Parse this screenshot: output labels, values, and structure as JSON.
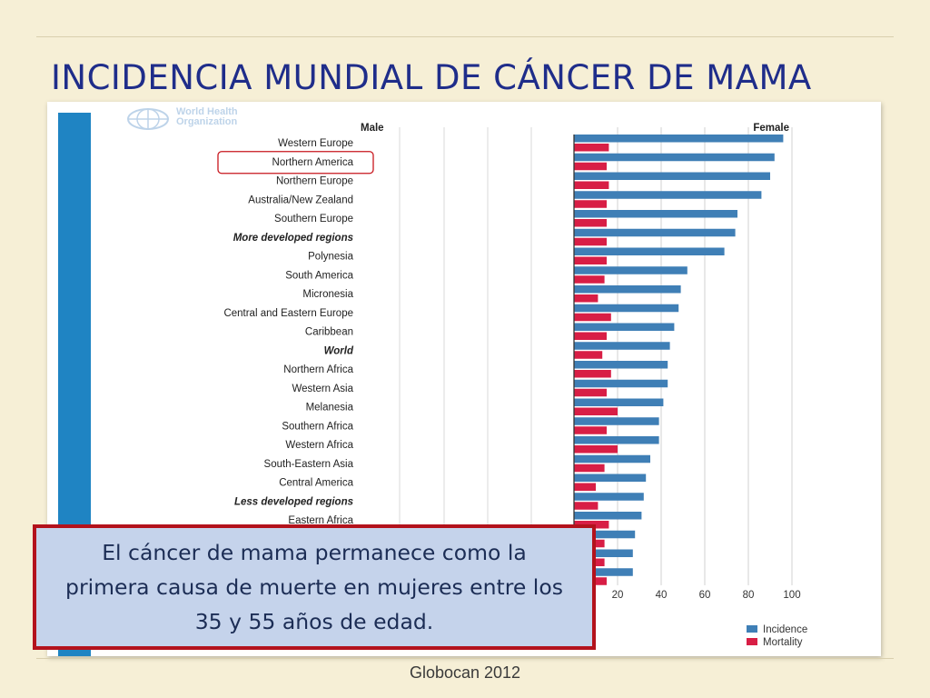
{
  "slide": {
    "title": "INCIDENCIA MUNDIAL DE CÁNCER DE MAMA",
    "source": "Globocan 2012",
    "callout_lines": [
      "El cáncer de mama permanece como la",
      "primera causa de muerte en mujeres entre los",
      "35 y 55 años de edad."
    ]
  },
  "logo": {
    "line1": "World Health",
    "line2": "Organization",
    "icon": "un-emblem-icon"
  },
  "colors": {
    "incidence": "#3f7fb6",
    "mortality": "#d81e45",
    "highlight": "#c8161d",
    "callout_border": "#b3121c"
  },
  "chart_data": {
    "type": "bar",
    "orientation": "horizontal",
    "panel_labels": {
      "left": "Male",
      "right": "Female"
    },
    "categories": [
      "Western Europe",
      "Northern America",
      "Northern Europe",
      "Australia/New Zealand",
      "Southern Europe",
      "More developed regions",
      "Polynesia",
      "South America",
      "Micronesia",
      "Central and Eastern Europe",
      "Caribbean",
      "World",
      "Northern Africa",
      "Western Asia",
      "Melanesia",
      "Southern Africa",
      "Western Africa",
      "South-Eastern Asia",
      "Central America",
      "Less developed regions",
      "Eastern Africa",
      "",
      "",
      ""
    ],
    "bold_categories": [
      "More developed regions",
      "World",
      "Less developed regions"
    ],
    "highlighted_category": "Northern America",
    "series": [
      {
        "name": "Incidence",
        "values": [
          96,
          92,
          90,
          86,
          75,
          74,
          69,
          52,
          49,
          48,
          46,
          44,
          43,
          43,
          41,
          39,
          39,
          35,
          33,
          32,
          31,
          28,
          27,
          27
        ]
      },
      {
        "name": "Mortality",
        "values": [
          16,
          15,
          16,
          15,
          15,
          15,
          15,
          14,
          11,
          17,
          15,
          13,
          17,
          15,
          20,
          15,
          20,
          14,
          10,
          11,
          16,
          14,
          14,
          15
        ]
      }
    ],
    "x_ticks": [
      20,
      40,
      60,
      80,
      100
    ],
    "xlim": [
      0,
      100
    ],
    "legend": "bottom-right"
  }
}
